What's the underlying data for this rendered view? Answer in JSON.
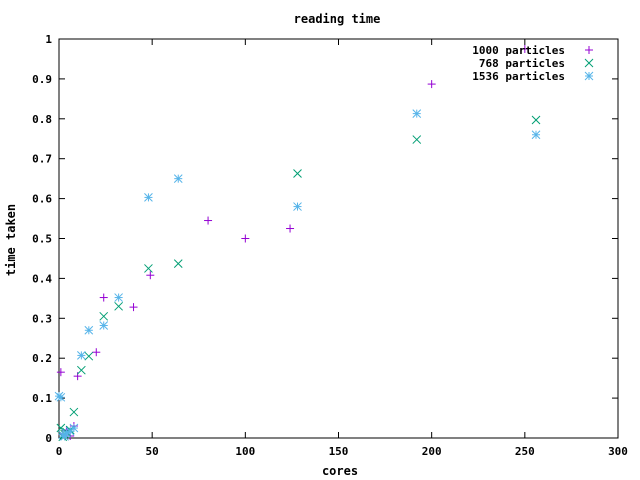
{
  "chart_data": {
    "type": "scatter",
    "title": "reading time",
    "xlabel": "cores",
    "ylabel": "time taken",
    "xlim": [
      0,
      300
    ],
    "ylim": [
      0,
      1
    ],
    "x_ticks": [
      0,
      50,
      100,
      150,
      200,
      250,
      300
    ],
    "y_ticks": [
      0,
      0.1,
      0.2,
      0.3,
      0.4,
      0.5,
      0.6,
      0.7,
      0.8,
      0.9,
      1
    ],
    "x_tick_labels": [
      "0",
      "50",
      "100",
      "150",
      "200",
      "250",
      "300"
    ],
    "y_tick_labels": [
      "0",
      "0.1",
      "0.2",
      "0.3",
      "0.4",
      "0.5",
      "0.6",
      "0.7",
      "0.8",
      "0.9",
      "1"
    ],
    "grid": false,
    "legend_position": "top-right",
    "series": [
      {
        "name": "1000 particles",
        "marker": "plus",
        "color": "#9400d3",
        "points": [
          [
            1,
            0.165
          ],
          [
            2,
            0.01
          ],
          [
            4,
            0.02
          ],
          [
            6,
            0.005
          ],
          [
            8,
            0.03
          ],
          [
            10,
            0.155
          ],
          [
            20,
            0.215
          ],
          [
            24,
            0.352
          ],
          [
            40,
            0.328
          ],
          [
            49,
            0.408
          ],
          [
            80,
            0.545
          ],
          [
            100,
            0.5
          ],
          [
            124,
            0.525
          ],
          [
            200,
            0.887
          ],
          [
            250,
            0.975
          ]
        ]
      },
      {
        "name": "768 particles",
        "marker": "cross",
        "color": "#009e73",
        "points": [
          [
            1,
            0.025
          ],
          [
            2,
            0.003
          ],
          [
            3,
            0.01
          ],
          [
            4,
            0.015
          ],
          [
            6,
            0.02
          ],
          [
            8,
            0.065
          ],
          [
            12,
            0.17
          ],
          [
            16,
            0.205
          ],
          [
            24,
            0.305
          ],
          [
            32,
            0.33
          ],
          [
            48,
            0.425
          ],
          [
            64,
            0.437
          ],
          [
            128,
            0.663
          ],
          [
            192,
            0.748
          ],
          [
            256,
            0.797
          ]
        ]
      },
      {
        "name": "1536 particles",
        "marker": "star",
        "color": "#56b4e9",
        "points": [
          [
            0,
            0.105
          ],
          [
            1,
            0.102
          ],
          [
            2,
            0.008
          ],
          [
            3,
            0.004
          ],
          [
            4,
            0.012
          ],
          [
            6,
            0.017
          ],
          [
            8,
            0.025
          ],
          [
            12,
            0.207
          ],
          [
            16,
            0.27
          ],
          [
            24,
            0.282
          ],
          [
            32,
            0.352
          ],
          [
            48,
            0.603
          ],
          [
            64,
            0.65
          ],
          [
            128,
            0.58
          ],
          [
            192,
            0.813
          ],
          [
            256,
            0.76
          ]
        ]
      }
    ]
  }
}
